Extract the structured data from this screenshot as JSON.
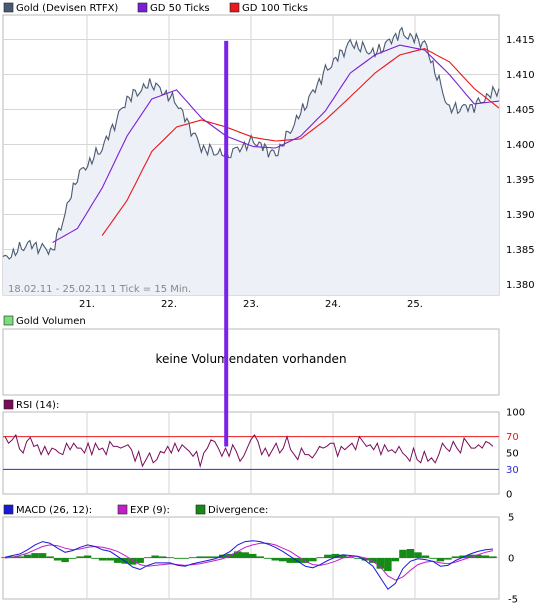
{
  "colors": {
    "price": "#4a5a70",
    "price_fill": "#eef0f8",
    "gd50": "#7a1fd6",
    "gd100": "#e8181c",
    "rsi": "#7a0a5a",
    "rsi_hi": "#e8181c",
    "rsi_lo": "#2a2ad6",
    "macd": "#1a1ad6",
    "exp": "#c21fc8",
    "divergence": "#168a16",
    "marker": "#7a22e8",
    "grid": "#d6d6d6"
  },
  "legend_main": {
    "price": "Gold (Devisen RTFX)",
    "gd50": "GD 50 Ticks",
    "gd100": "GD 100 Ticks"
  },
  "legend_volume": {
    "label": "Gold Volumen"
  },
  "legend_rsi": {
    "label": "RSI (14):"
  },
  "legend_macd": {
    "macd": "MACD (26, 12):",
    "exp": "EXP (9):",
    "divergence": "Divergence:"
  },
  "volume_message": "keine Volumendaten vorhanden",
  "footnote": "18.02.11 - 25.02.11   1 Tick = 15 Min.",
  "chart_data": [
    {
      "type": "line",
      "name": "price",
      "x_labels": [
        "21.",
        "22.",
        "23.",
        "24.",
        "25."
      ],
      "ylim": [
        1.3785,
        1.4185
      ],
      "y_ticks": [
        "1.380",
        "1.385",
        "1.390",
        "1.395",
        "1.400",
        "1.405",
        "1.410",
        "1.415"
      ],
      "points_t": [
        0,
        0.5,
        1,
        1.5,
        2,
        2.5,
        3,
        3.5,
        4,
        4.5,
        5.05,
        5.5,
        6,
        6.5,
        7,
        7.5,
        8,
        8.5,
        9,
        9.5,
        10
      ],
      "price": [
        1.3835,
        1.3858,
        1.3848,
        1.3955,
        1.3995,
        1.4065,
        1.4088,
        1.406,
        1.3995,
        1.3985,
        1.4005,
        1.3985,
        1.4045,
        1.4105,
        1.4145,
        1.413,
        1.416,
        1.4145,
        1.405,
        1.4055,
        1.408
      ],
      "gd50": [
        null,
        null,
        1.386,
        1.388,
        1.3938,
        1.4012,
        1.4065,
        1.4078,
        1.4038,
        1.4012,
        1.3997,
        1.3995,
        1.4012,
        1.4048,
        1.4102,
        1.4128,
        1.4142,
        1.4135,
        1.41,
        1.4058,
        1.4062
      ],
      "gd100": [
        null,
        null,
        null,
        null,
        1.387,
        1.392,
        1.399,
        1.4025,
        1.4035,
        1.4025,
        1.401,
        1.4005,
        1.4008,
        1.4035,
        1.4068,
        1.4102,
        1.4128,
        1.4137,
        1.4118,
        1.408,
        1.4052
      ],
      "marker_at": 4.5
    },
    {
      "type": "line",
      "name": "RSI (14)",
      "ylim": [
        0,
        100
      ],
      "y_ticks": [
        "100",
        "70",
        "50",
        "30",
        "0"
      ],
      "levels": [
        70,
        30
      ],
      "values": [
        70,
        62,
        66,
        72,
        55,
        50,
        64,
        69,
        58,
        60,
        48,
        58,
        48,
        56,
        54,
        50,
        48,
        62,
        54,
        62,
        56,
        56,
        50,
        62,
        48,
        62,
        54,
        56,
        48,
        64,
        58,
        58,
        56,
        58,
        60,
        54,
        40,
        52,
        34,
        42,
        50,
        38,
        42,
        52,
        50,
        58,
        50,
        62,
        52,
        60,
        56,
        52,
        46,
        52,
        34,
        50,
        56,
        66,
        64,
        56,
        46,
        56,
        46,
        60,
        52,
        40,
        46,
        56,
        66,
        72,
        64,
        48,
        56,
        46,
        54,
        62,
        50,
        56,
        70,
        54,
        48,
        42,
        56,
        48,
        48,
        44,
        50,
        58,
        56,
        58,
        62,
        62,
        46,
        58,
        54,
        58,
        62,
        54,
        70,
        64,
        58,
        60,
        54,
        62,
        48,
        60,
        52,
        54,
        50,
        58,
        50,
        46,
        40,
        56,
        42,
        38,
        52,
        40,
        44,
        38,
        48,
        62,
        56,
        52,
        64,
        56,
        50,
        68,
        62,
        56,
        56,
        60,
        56,
        64,
        62,
        58
      ]
    },
    {
      "type": "line",
      "name": "MACD (26, 12)",
      "ylim": [
        -5,
        5
      ],
      "y_ticks": [
        "5",
        "0",
        "-5"
      ],
      "macd": [
        0.1,
        0.3,
        0.5,
        1.0,
        1.6,
        2.0,
        1.8,
        1.2,
        0.7,
        0.9,
        1.3,
        1.6,
        1.4,
        1.0,
        0.8,
        0.2,
        -0.4,
        -1.1,
        -1.4,
        -0.9,
        -0.6,
        -0.6,
        -0.6,
        -0.9,
        -1.0,
        -0.7,
        -0.5,
        -0.3,
        -0.1,
        0.3,
        0.8,
        1.6,
        2.0,
        2.1,
        2.0,
        1.7,
        1.3,
        0.8,
        0.2,
        -0.4,
        -1.0,
        -1.2,
        -0.8,
        -0.3,
        0.1,
        0.4,
        0.3,
        0.2,
        -0.3,
        -1.0,
        -2.4,
        -3.8,
        -3.1,
        -1.3,
        -0.4,
        -0.1,
        -0.2,
        -0.4,
        -1.0,
        -0.9,
        -0.3,
        0.1,
        0.5,
        0.8,
        1.0,
        1.1
      ],
      "exp": [
        0.0,
        0.1,
        0.3,
        0.6,
        1.0,
        1.4,
        1.6,
        1.5,
        1.2,
        1.0,
        1.1,
        1.3,
        1.4,
        1.3,
        1.1,
        0.8,
        0.3,
        -0.3,
        -0.8,
        -1.0,
        -0.9,
        -0.8,
        -0.7,
        -0.8,
        -0.9,
        -0.8,
        -0.7,
        -0.5,
        -0.3,
        -0.1,
        0.3,
        0.8,
        1.3,
        1.6,
        1.8,
        1.8,
        1.6,
        1.2,
        0.8,
        0.2,
        -0.4,
        -0.8,
        -0.9,
        -0.7,
        -0.4,
        0.0,
        0.2,
        0.2,
        0.0,
        -0.4,
        -1.1,
        -2.2,
        -2.7,
        -2.3,
        -1.5,
        -0.8,
        -0.5,
        -0.4,
        -0.6,
        -0.7,
        -0.5,
        -0.2,
        0.1,
        0.4,
        0.7,
        0.9
      ],
      "divergence": [
        0.1,
        0.2,
        0.2,
        0.4,
        0.6,
        0.6,
        0.2,
        -0.3,
        -0.5,
        -0.1,
        0.2,
        0.3,
        0.0,
        -0.3,
        -0.3,
        -0.6,
        -0.7,
        -0.8,
        -0.6,
        0.1,
        0.3,
        0.2,
        0.1,
        -0.1,
        -0.1,
        0.1,
        0.2,
        0.2,
        0.2,
        0.4,
        0.5,
        0.8,
        0.7,
        0.5,
        0.2,
        -0.1,
        -0.3,
        -0.4,
        -0.6,
        -0.6,
        -0.6,
        -0.4,
        0.1,
        0.4,
        0.5,
        0.4,
        0.1,
        0.0,
        -0.3,
        -0.6,
        -1.3,
        -1.6,
        -0.4,
        1.0,
        1.1,
        0.7,
        0.3,
        0.0,
        -0.4,
        -0.2,
        0.2,
        0.3,
        0.4,
        0.4,
        0.3,
        0.2
      ]
    }
  ]
}
